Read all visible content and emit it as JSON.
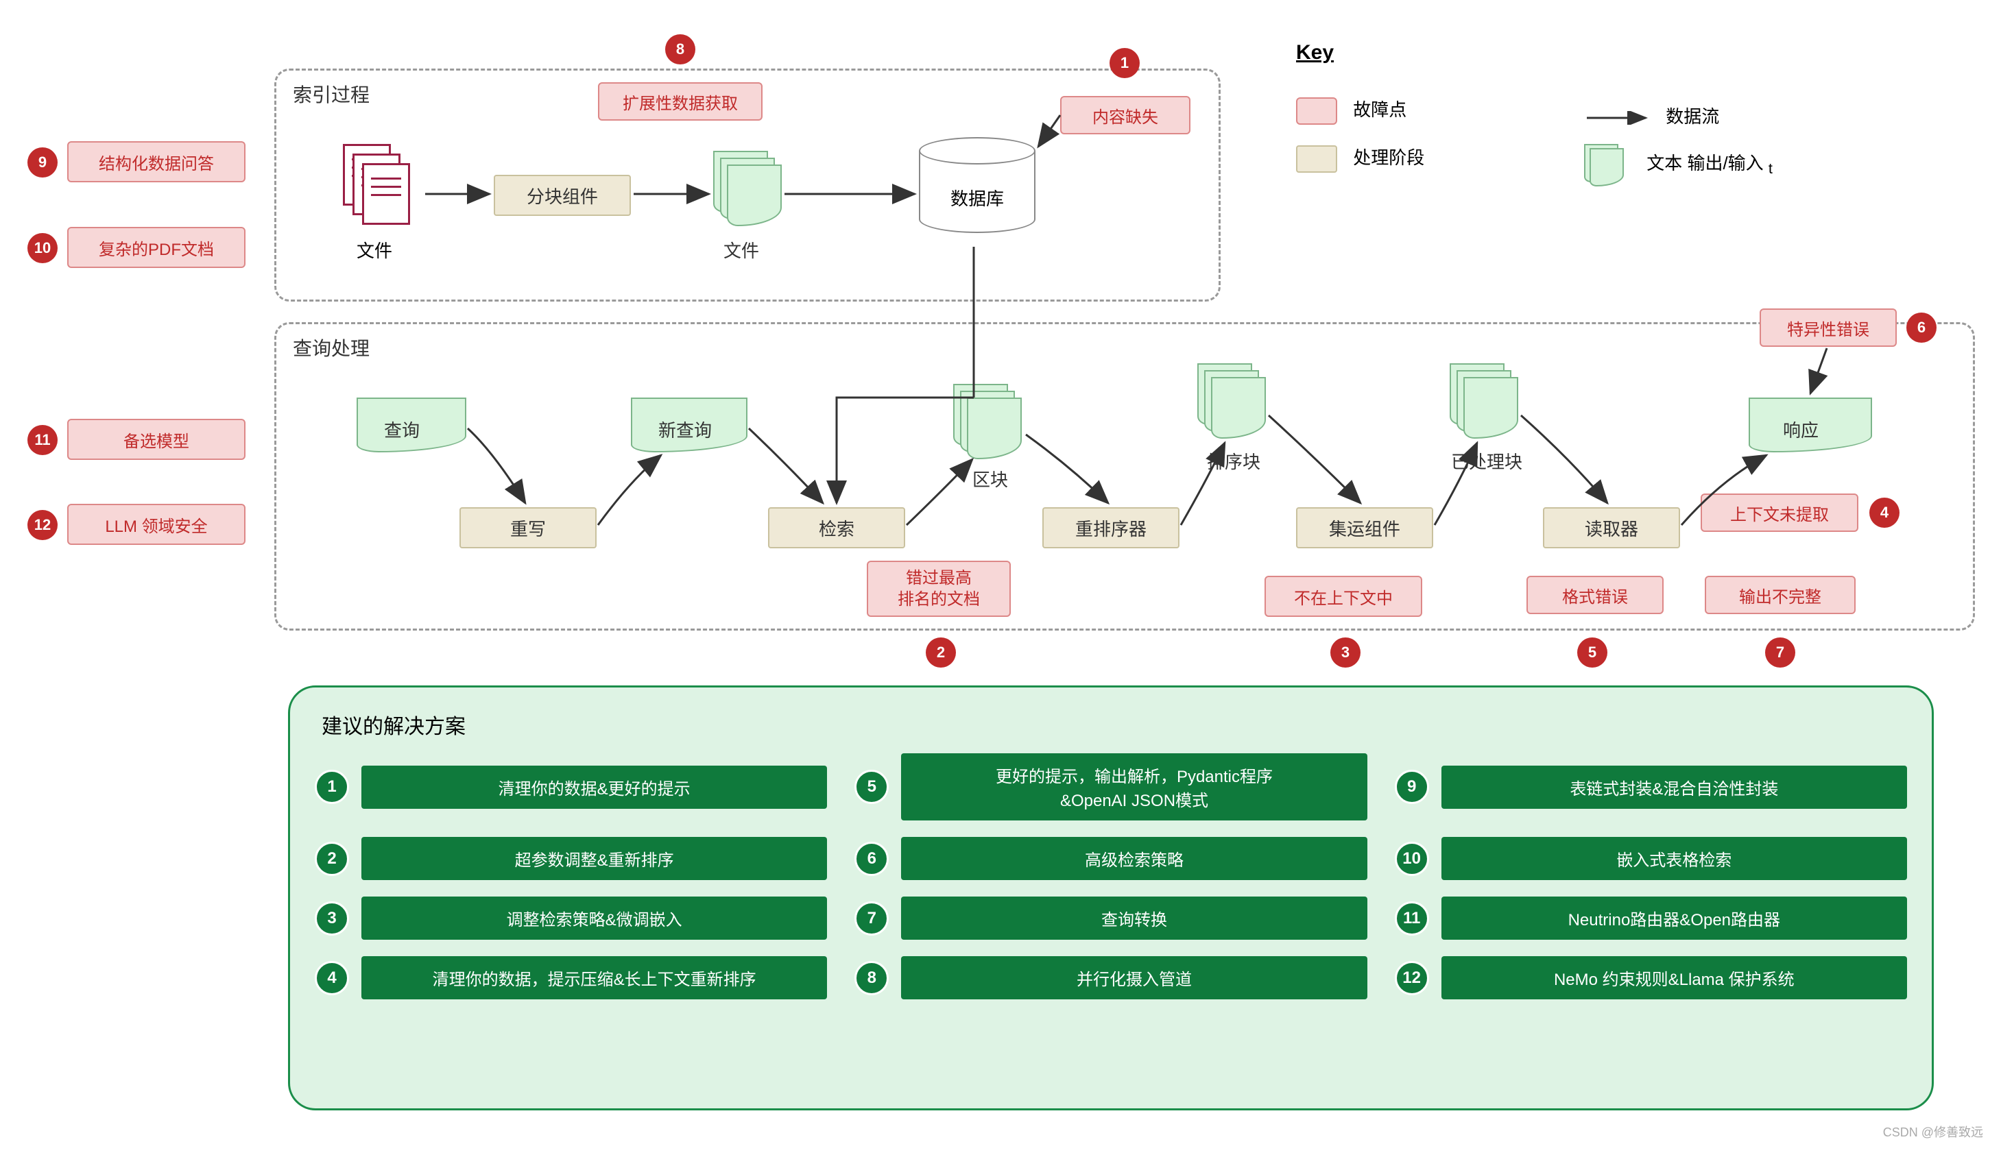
{
  "colors": {
    "failure_bg": "#f7d7d7",
    "failure_border": "#d88",
    "failure_text": "#c02a2a",
    "stage_bg": "#efe9d6",
    "stage_border": "#c9c19e",
    "doc_bg": "#d8f4dd",
    "doc_border": "#7cb58a",
    "solution_panel_bg": "#def3e4",
    "solution_panel_border": "#1b8e4a",
    "solution_bar": "#0f7a3c",
    "circle_red": "#c02a2a"
  },
  "groups": {
    "indexing": "索引过程",
    "query": "查询处理"
  },
  "indexing": {
    "files_label": "文件",
    "chunking": "分块组件",
    "chunks_label": "文件",
    "database": "数据库"
  },
  "query": {
    "query_doc": "查询",
    "rewrite": "重写",
    "new_query_doc": "新查询",
    "retrieve": "检索",
    "blocks_doc": "区块",
    "rerank": "重排序器",
    "ranked_doc": "排序块",
    "collect": "集运组件",
    "processed_doc": "已处理块",
    "reader": "读取器",
    "response_doc": "响应"
  },
  "failures": {
    "f1": "内容缺失",
    "f2_l1": "错过最高",
    "f2_l2": "排名的文档",
    "f3": "不在上下文中",
    "f4": "上下文未提取",
    "f5": "格式错误",
    "f6": "特异性错误",
    "f7": "输出不完整",
    "f8": "扩展性数据获取",
    "f9": "结构化数据问答",
    "f10": "复杂的PDF文档",
    "f11": "备选模型",
    "f12": "LLM 领域安全"
  },
  "key": {
    "title": "Key",
    "failure": "故障点",
    "stage": "处理阶段",
    "flow": "数据流",
    "io": "文本 输出/输入",
    "io_sub": "t"
  },
  "solutions": {
    "title": "建议的解决方案",
    "items": [
      {
        "n": "1",
        "label": "清理你的数据&更好的提示"
      },
      {
        "n": "5",
        "label": "更好的提示，输出解析，Pydantic程序\n&OpenAI JSON模式"
      },
      {
        "n": "9",
        "label": "表链式封装&混合自洽性封装"
      },
      {
        "n": "2",
        "label": "超参数调整&重新排序"
      },
      {
        "n": "6",
        "label": "高级检索策略"
      },
      {
        "n": "10",
        "label": "嵌入式表格检索"
      },
      {
        "n": "3",
        "label": "调整检索策略&微调嵌入"
      },
      {
        "n": "7",
        "label": "查询转换"
      },
      {
        "n": "11",
        "label": "Neutrino路由器&Open路由器"
      },
      {
        "n": "4",
        "label": "清理你的数据，提示压缩&长上下文重新排序"
      },
      {
        "n": "8",
        "label": "并行化摄入管道"
      },
      {
        "n": "12",
        "label": "NeMo 约束规则&Llama 保护系统"
      }
    ]
  },
  "watermark": "CSDN @修善致远"
}
